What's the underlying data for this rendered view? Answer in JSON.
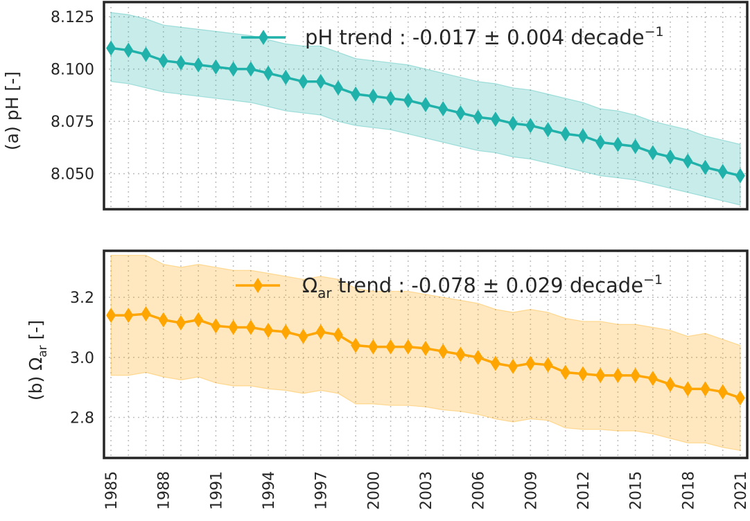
{
  "chart_data": [
    {
      "type": "line",
      "panel": "(a)",
      "ylabel": "(a) pH [-]",
      "ylim": [
        8.033,
        8.132
      ],
      "yticks": [
        8.05,
        8.075,
        8.1,
        8.125
      ],
      "ytick_labels": [
        "8.050",
        "8.075",
        "8.100",
        "8.125"
      ],
      "xlim": [
        1984.6,
        2021.4
      ],
      "x": [
        1985,
        1986,
        1987,
        1988,
        1989,
        1990,
        1991,
        1992,
        1993,
        1994,
        1995,
        1996,
        1997,
        1998,
        1999,
        2000,
        2001,
        2002,
        2003,
        2004,
        2005,
        2006,
        2007,
        2008,
        2009,
        2010,
        2011,
        2012,
        2013,
        2014,
        2015,
        2016,
        2017,
        2018,
        2019,
        2020,
        2021
      ],
      "series": [
        {
          "name": "pH",
          "color": "#20b2aa",
          "marker": "thin-diamond",
          "values": [
            8.11,
            8.109,
            8.107,
            8.104,
            8.103,
            8.102,
            8.101,
            8.1,
            8.1,
            8.098,
            8.096,
            8.094,
            8.094,
            8.091,
            8.088,
            8.087,
            8.086,
            8.085,
            8.083,
            8.081,
            8.079,
            8.077,
            8.076,
            8.074,
            8.073,
            8.071,
            8.069,
            8.068,
            8.065,
            8.064,
            8.063,
            8.06,
            8.058,
            8.056,
            8.053,
            8.051,
            8.049
          ],
          "band_upper": [
            8.127,
            8.126,
            8.124,
            8.121,
            8.12,
            8.119,
            8.118,
            8.117,
            8.116,
            8.114,
            8.112,
            8.111,
            8.111,
            8.108,
            8.105,
            8.104,
            8.103,
            8.102,
            8.1,
            8.098,
            8.096,
            8.094,
            8.093,
            8.091,
            8.09,
            8.088,
            8.086,
            8.084,
            8.081,
            8.08,
            8.078,
            8.075,
            8.073,
            8.071,
            8.068,
            8.066,
            8.064
          ],
          "band_lower": [
            8.094,
            8.093,
            8.091,
            8.089,
            8.088,
            8.087,
            8.086,
            8.085,
            8.084,
            8.082,
            8.08,
            8.079,
            8.078,
            8.075,
            8.073,
            8.072,
            8.071,
            8.069,
            8.067,
            8.065,
            8.063,
            8.061,
            8.06,
            8.058,
            8.057,
            8.055,
            8.053,
            8.051,
            8.049,
            8.048,
            8.047,
            8.045,
            8.043,
            8.041,
            8.039,
            8.037,
            8.035
          ]
        }
      ],
      "legend": {
        "main": "pH trend : -0.017 ± 0.004  decade",
        "exponent": "−1",
        "placement": "top-right"
      },
      "grid": true
    },
    {
      "type": "line",
      "panel": "(b)",
      "ylabel_prefix": "(b) Ω",
      "ylabel_sub": "ar",
      "ylabel_suffix": " [-]",
      "ylim": [
        2.665,
        3.355
      ],
      "yticks": [
        2.8,
        3.0,
        3.2
      ],
      "ytick_labels": [
        "2.8",
        "3.0",
        "3.2"
      ],
      "xlim": [
        1984.6,
        2021.4
      ],
      "x": [
        1985,
        1986,
        1987,
        1988,
        1989,
        1990,
        1991,
        1992,
        1993,
        1994,
        1995,
        1996,
        1997,
        1998,
        1999,
        2000,
        2001,
        2002,
        2003,
        2004,
        2005,
        2006,
        2007,
        2008,
        2009,
        2010,
        2011,
        2012,
        2013,
        2014,
        2015,
        2016,
        2017,
        2018,
        2019,
        2020,
        2021
      ],
      "series": [
        {
          "name": "Ωar",
          "color": "#ffa500",
          "marker": "thin-diamond",
          "values": [
            3.14,
            3.14,
            3.145,
            3.125,
            3.115,
            3.125,
            3.105,
            3.1,
            3.1,
            3.09,
            3.085,
            3.07,
            3.085,
            3.075,
            3.04,
            3.035,
            3.035,
            3.035,
            3.03,
            3.02,
            3.01,
            3.0,
            2.98,
            2.97,
            2.98,
            2.975,
            2.95,
            2.945,
            2.94,
            2.94,
            2.94,
            2.93,
            2.91,
            2.895,
            2.895,
            2.885,
            2.865
          ],
          "band_upper": [
            3.34,
            3.34,
            3.34,
            3.31,
            3.3,
            3.31,
            3.3,
            3.29,
            3.29,
            3.28,
            3.27,
            3.26,
            3.27,
            3.26,
            3.23,
            3.22,
            3.22,
            3.22,
            3.21,
            3.2,
            3.19,
            3.18,
            3.16,
            3.15,
            3.16,
            3.15,
            3.13,
            3.12,
            3.12,
            3.11,
            3.11,
            3.1,
            3.09,
            3.07,
            3.08,
            3.06,
            3.04
          ],
          "band_lower": [
            2.94,
            2.94,
            2.95,
            2.935,
            2.925,
            2.935,
            2.915,
            2.905,
            2.905,
            2.895,
            2.89,
            2.88,
            2.89,
            2.88,
            2.845,
            2.845,
            2.84,
            2.84,
            2.835,
            2.825,
            2.82,
            2.81,
            2.795,
            2.785,
            2.795,
            2.79,
            2.765,
            2.76,
            2.76,
            2.755,
            2.755,
            2.745,
            2.73,
            2.715,
            2.715,
            2.7,
            2.69
          ]
        }
      ],
      "legend": {
        "prefix": "Ω",
        "sub": "ar",
        "main": " trend : -0.078 ± 0.029  decade",
        "exponent": "−1",
        "placement": "top-right"
      },
      "grid": true
    }
  ],
  "x_ticks": [
    1985,
    1988,
    1991,
    1994,
    1997,
    2000,
    2003,
    2006,
    2009,
    2012,
    2015,
    2018,
    2021
  ],
  "x_tick_labels": [
    "1985",
    "1988",
    "1991",
    "1994",
    "1997",
    "2000",
    "2003",
    "2006",
    "2009",
    "2012",
    "2015",
    "2018",
    "2021"
  ],
  "band_opacity": 0.25
}
